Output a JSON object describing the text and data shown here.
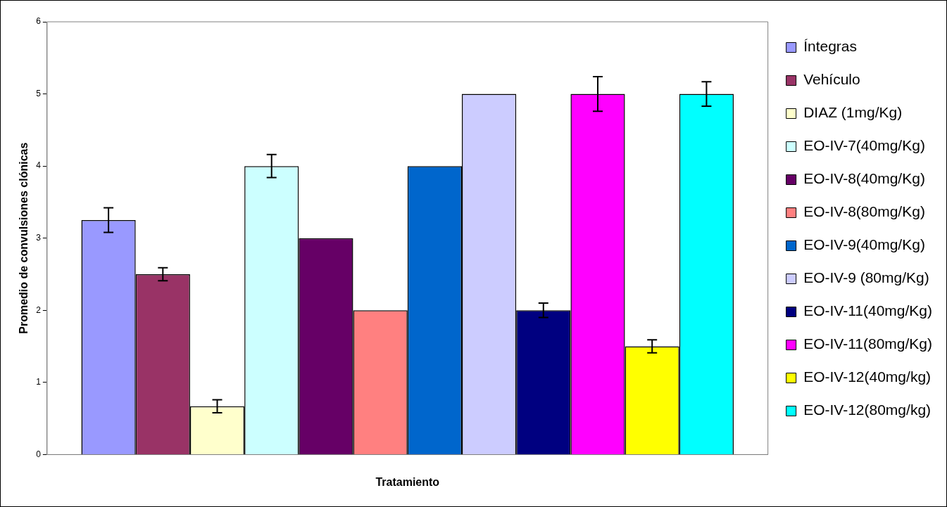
{
  "chart_data": {
    "type": "bar",
    "xlabel": "Tratamiento",
    "ylabel": "Promedio de convulsiones clónicas",
    "categories": [
      null
    ],
    "series": [
      {
        "name": "Íntegras",
        "color": "#9999ff",
        "values": [
          3.25
        ],
        "errors": [
          0.17
        ]
      },
      {
        "name": "Vehículo",
        "color": "#993366",
        "values": [
          2.5
        ],
        "errors": [
          0.09
        ]
      },
      {
        "name": "DIAZ (1mg/Kg)",
        "color": "#ffffcc",
        "values": [
          0.67
        ],
        "errors": [
          0.09
        ]
      },
      {
        "name": "EO-IV-7(40mg/Kg)",
        "color": "#ccffff",
        "values": [
          4
        ],
        "errors": [
          0.16
        ]
      },
      {
        "name": "EO-IV-8(40mg/Kg)",
        "color": "#660066",
        "values": [
          3
        ],
        "errors": [
          null
        ]
      },
      {
        "name": "EO-IV-8(80mg/Kg)",
        "color": "#ff8080",
        "values": [
          2
        ],
        "errors": [
          null
        ]
      },
      {
        "name": "EO-IV-9(40mg/Kg)",
        "color": "#0066cc",
        "values": [
          4
        ],
        "errors": [
          null
        ]
      },
      {
        "name": "EO-IV-9 (80mg/Kg)",
        "color": "#ccccff",
        "values": [
          5
        ],
        "errors": [
          null
        ]
      },
      {
        "name": "EO-IV-11(40mg/Kg)",
        "color": "#000080",
        "values": [
          2
        ],
        "errors": [
          0.1
        ]
      },
      {
        "name": "EO-IV-11(80mg/Kg)",
        "color": "#ff00ff",
        "values": [
          5
        ],
        "errors": [
          0.24
        ]
      },
      {
        "name": "EO-IV-12(40mg/kg)",
        "color": "#ffff00",
        "values": [
          1.5
        ],
        "errors": [
          0.09
        ]
      },
      {
        "name": "EO-IV-12(80mg/kg)",
        "color": "#00ffff",
        "values": [
          5
        ],
        "errors": [
          0.17
        ]
      }
    ],
    "ylim": [
      0,
      6
    ],
    "yticks": [
      0,
      1,
      2,
      3,
      4,
      5,
      6
    ],
    "grid": false,
    "legend": "right"
  }
}
